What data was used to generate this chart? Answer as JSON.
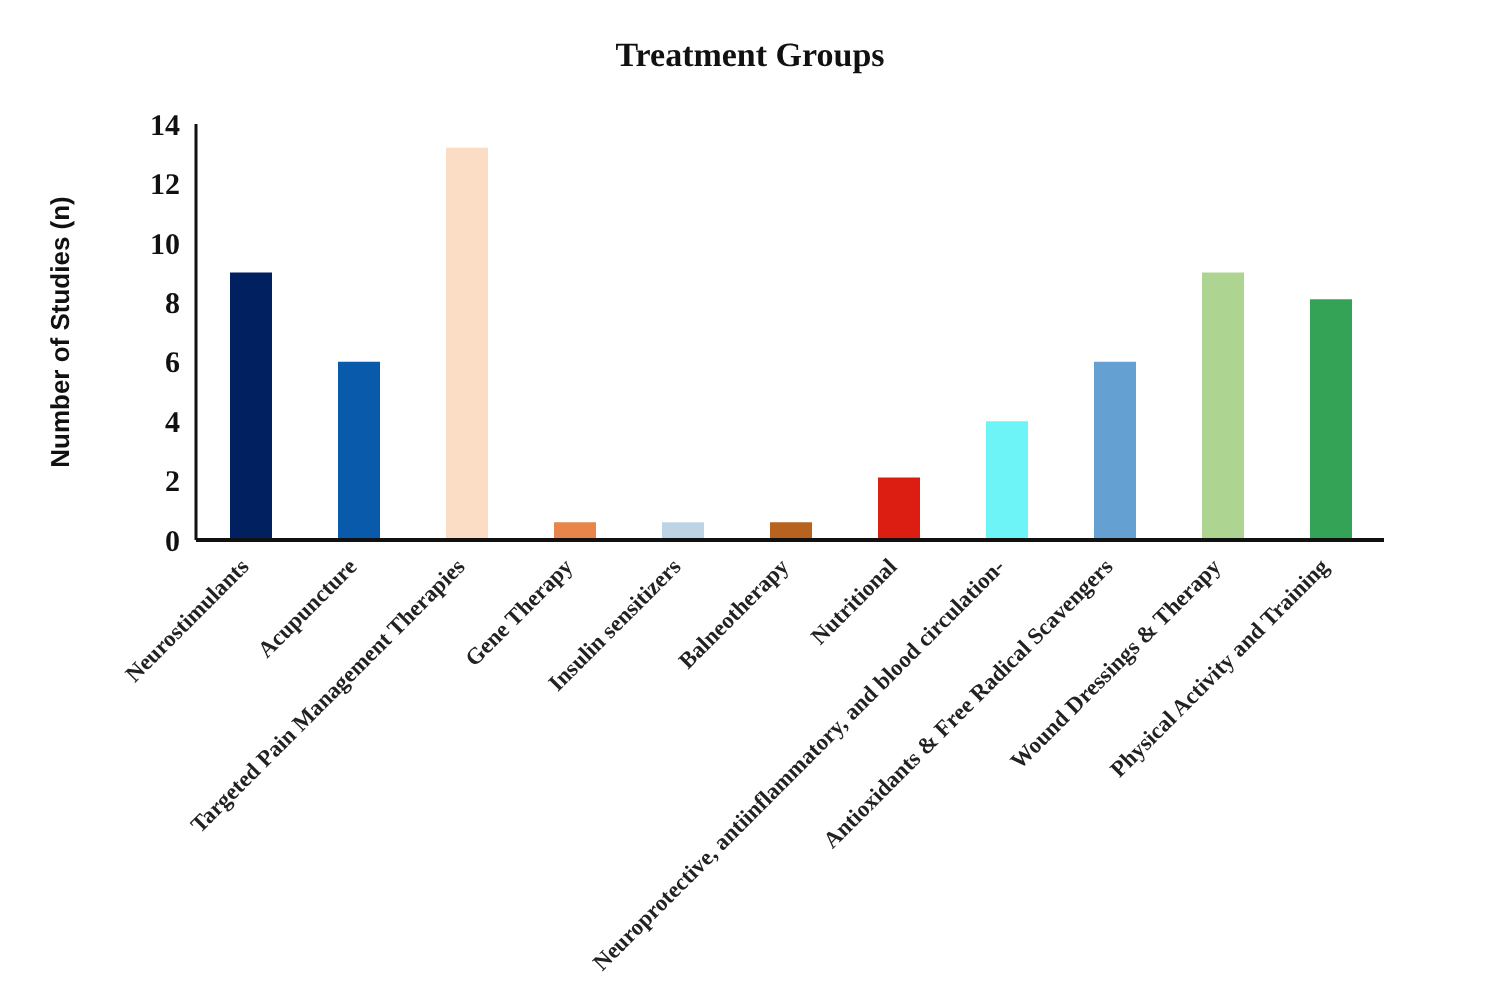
{
  "chart_data": {
    "type": "bar",
    "title": "Treatment Groups",
    "ylabel": "Number of Studies (n)",
    "categories": [
      "Neurostimulants",
      "Acupuncture",
      "Targeted Pain Management Therapies",
      "Gene Therapy",
      "Insulin sensitizers",
      "Balneotherapy",
      "Nutritional",
      "Neuroprotective, antiinflammatory, and blood circulation-",
      "Antioxidants & Free Radical Scavengers",
      "Wound Dressings & Therapy",
      "Physical Activity and Training"
    ],
    "values": [
      9,
      6,
      13.2,
      0.6,
      0.6,
      0.6,
      2.1,
      4,
      6,
      9,
      8.1
    ],
    "colors": [
      "#002060",
      "#0a5aab",
      "#fbdcc4",
      "#e8854a",
      "#bcd4e6",
      "#b8621f",
      "#dc1e12",
      "#6cf4f6",
      "#65a0d2",
      "#aed491",
      "#34a355"
    ],
    "ylim": [
      0,
      14
    ],
    "yticks": [
      0,
      2,
      4,
      6,
      8,
      10,
      12,
      14
    ],
    "grid": false
  }
}
